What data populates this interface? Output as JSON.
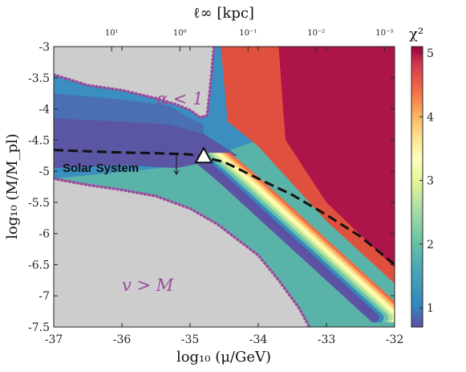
{
  "chart_data": {
    "type": "heatmap",
    "title": "",
    "xlabel": "log₁₀ (μ/GeV)",
    "ylabel": "log₁₀ (M/M_pl)",
    "top_xlabel": "ℓ∞ [kpc]",
    "xlim": [
      -37,
      -32
    ],
    "ylim": [
      -7.5,
      -3
    ],
    "x_ticks": [
      "-37",
      "-36",
      "-35",
      "-34",
      "-33",
      "-32"
    ],
    "x_tick_values": [
      -37,
      -36,
      -35,
      -34,
      -33,
      -32
    ],
    "y_ticks": [
      "-3",
      "-3.5",
      "-4",
      "-4.5",
      "-5",
      "-5.5",
      "-6",
      "-6.5",
      "-7",
      "-7.5"
    ],
    "y_tick_values": [
      -3,
      -3.5,
      -4,
      -4.5,
      -5,
      -5.5,
      -6,
      -6.5,
      -7,
      -7.5
    ],
    "top_ticks": [
      {
        "label": "10¹",
        "x": -36.15
      },
      {
        "label": "10⁰",
        "x": -35.15
      },
      {
        "label": "10⁻¹",
        "x": -34.15
      },
      {
        "label": "10⁻²",
        "x": -33.15
      },
      {
        "label": "10⁻³",
        "x": -32.15
      }
    ],
    "colorbar": {
      "label": "χ²",
      "range": [
        0.7,
        5.1
      ],
      "ticks": [
        "1",
        "2",
        "3",
        "4",
        "5"
      ],
      "tick_values": [
        1,
        2,
        3,
        4,
        5
      ]
    },
    "annotations": {
      "upper_region": "α < 1",
      "lower_region": "v > M",
      "dashed_line": "Solar System"
    },
    "solar_system_bound": {
      "x": [
        -37.0,
        -36.5,
        -36.0,
        -35.5,
        -35.0,
        -34.5,
        -34.0,
        -33.5,
        -33.0,
        -32.5,
        -32.0
      ],
      "y": [
        -4.66,
        -4.68,
        -4.7,
        -4.71,
        -4.73,
        -4.85,
        -5.12,
        -5.38,
        -5.7,
        -6.05,
        -6.5
      ]
    },
    "marker_point": {
      "x": -34.8,
      "y": -4.77
    },
    "alpha_lt_1_boundary": {
      "x": [
        -37.0,
        -36.5,
        -36.0,
        -35.5,
        -35.2,
        -35.0,
        -34.85,
        -34.75,
        -34.7,
        -34.65
      ],
      "y": [
        -3.45,
        -3.62,
        -3.7,
        -3.83,
        -3.93,
        -4.02,
        -4.14,
        -4.1,
        -3.6,
        -3.0
      ]
    },
    "v_gt_M_boundary": {
      "x": [
        -37.0,
        -36.5,
        -36.0,
        -35.5,
        -35.0,
        -34.6,
        -34.3,
        -34.0,
        -33.7,
        -33.4,
        -33.25
      ],
      "y": [
        -5.12,
        -5.22,
        -5.3,
        -5.4,
        -5.6,
        -5.85,
        -6.1,
        -6.35,
        -6.75,
        -7.2,
        -7.5
      ]
    },
    "ridge_line": {
      "x": [
        -37.0,
        -36.0,
        -35.2,
        -34.6,
        -34.2,
        -33.6,
        -33.0,
        -32.4,
        -32.0
      ],
      "y": [
        -4.75,
        -4.7,
        -4.66,
        -4.78,
        -5.15,
        -5.75,
        -6.35,
        -6.95,
        -7.35
      ]
    }
  }
}
